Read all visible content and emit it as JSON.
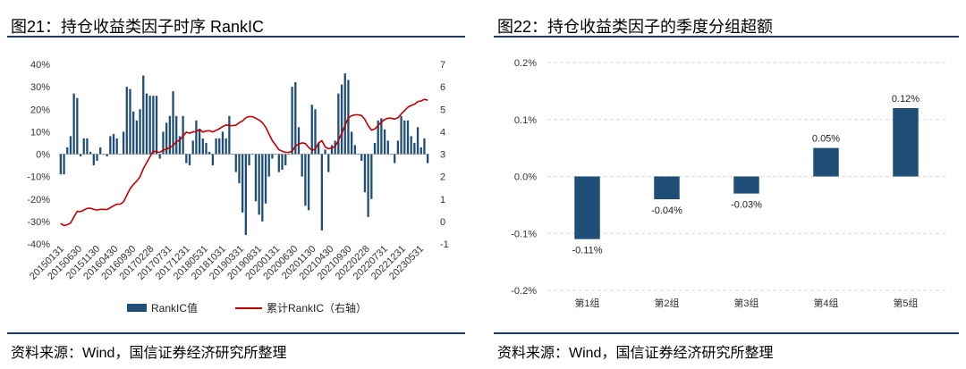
{
  "left": {
    "title": "图21：持仓收益类因子时序 RankIC",
    "source": "资料来源：Wind，国信证券经济研究所整理",
    "chart_data": {
      "type": "bar",
      "title": "图21：持仓收益类因子时序 RankIC",
      "xlabel": "",
      "ylabel": "",
      "ylim": [
        -0.4,
        0.4
      ],
      "y2lim": [
        -1,
        7
      ],
      "yticks": [
        "40%",
        "30%",
        "20%",
        "10%",
        "0%",
        "-10%",
        "-20%",
        "-30%",
        "-40%"
      ],
      "y2ticks": [
        "7",
        "6",
        "5",
        "4",
        "3",
        "2",
        "1",
        "0",
        "-1"
      ],
      "x_tick_labels": [
        "20150131",
        "20150630",
        "20151130",
        "20160430",
        "20160930",
        "20170228",
        "20170731",
        "20171231",
        "20180531",
        "20181031",
        "20190331",
        "20190831",
        "20200131",
        "20200630",
        "20201130",
        "20210430",
        "20210930",
        "20220228",
        "20220731",
        "20221231",
        "20230531"
      ],
      "grid": false,
      "legend": "bottom",
      "series": [
        {
          "name": "RankIC值",
          "type": "bar",
          "color": "#1f4e79",
          "values": [
            -0.09,
            -0.09,
            0.03,
            0.08,
            0.27,
            0.25,
            -0.01,
            0.07,
            0.07,
            0.01,
            -0.05,
            -0.03,
            0.03,
            0.0,
            -0.01,
            0.08,
            0.09,
            0.07,
            0.0,
            0.1,
            0.3,
            0.29,
            0.19,
            0.15,
            0.2,
            0.35,
            0.27,
            0.26,
            0.26,
            0.26,
            -0.02,
            0.1,
            0.14,
            0.17,
            0.28,
            0.17,
            0.08,
            0.17,
            -0.04,
            -0.05,
            0.06,
            0.15,
            0.11,
            0.07,
            0.05,
            0.01,
            -0.05,
            0.07,
            0.07,
            0.1,
            0.07,
            0.17,
            0.0,
            -0.08,
            -0.13,
            -0.26,
            -0.36,
            -0.05,
            0.0,
            -0.21,
            -0.27,
            -0.3,
            -0.22,
            -0.1,
            -0.02,
            0.0,
            -0.08,
            -0.07,
            -0.05,
            0.0,
            0.3,
            0.32,
            0.12,
            -0.1,
            -0.23,
            -0.25,
            0.22,
            0.2,
            0.05,
            -0.34,
            0.02,
            -0.08,
            0.04,
            0.06,
            0.27,
            0.31,
            0.36,
            0.33,
            0.1,
            0.04,
            0.0,
            -0.03,
            -0.17,
            -0.28,
            -0.2,
            0.05,
            0.15,
            0.16,
            0.11,
            0.06,
            0.0,
            -0.04,
            0.06,
            0.17,
            0.15,
            0.15,
            0.08,
            0.05,
            0.12,
            0.03,
            0.07,
            -0.04
          ]
        },
        {
          "name": "累计RankIC（右轴）",
          "type": "line",
          "axis": "right",
          "color": "#c00000",
          "values": [
            -0.09,
            -0.18,
            -0.15,
            -0.07,
            0.2,
            0.45,
            0.44,
            0.51,
            0.58,
            0.59,
            0.54,
            0.51,
            0.54,
            0.54,
            0.53,
            0.61,
            0.7,
            0.77,
            0.77,
            0.87,
            1.17,
            1.46,
            1.65,
            1.8,
            2.0,
            2.35,
            2.62,
            2.88,
            3.14,
            3.1,
            3.08,
            3.18,
            3.22,
            3.3,
            3.38,
            3.55,
            3.63,
            3.8,
            3.98,
            3.93,
            3.99,
            4.0,
            4.11,
            3.98,
            4.03,
            4.04,
            3.99,
            4.06,
            4.13,
            4.23,
            4.3,
            4.27,
            4.27,
            4.29,
            4.4,
            4.48,
            4.62,
            4.67,
            4.67,
            4.6,
            4.52,
            4.4,
            4.2,
            3.9,
            3.6,
            3.4,
            3.2,
            3.13,
            3.08,
            3.08,
            3.13,
            3.35,
            3.45,
            3.5,
            3.47,
            3.3,
            3.17,
            3.22,
            3.5,
            3.6,
            3.32,
            3.24,
            3.28,
            3.34,
            3.61,
            3.92,
            4.28,
            4.61,
            4.71,
            4.75,
            4.75,
            4.72,
            4.55,
            4.27,
            4.07,
            4.12,
            4.27,
            4.43,
            4.54,
            4.6,
            4.6,
            4.56,
            4.62,
            4.79,
            4.94,
            5.09,
            5.17,
            5.22,
            5.34,
            5.37,
            5.44,
            5.4
          ]
        }
      ]
    }
  },
  "right": {
    "title": "图22：持仓收益类因子的季度分组超额",
    "source": "资料来源：Wind，国信证券经济研究所整理",
    "chart_data": {
      "type": "bar",
      "title": "图22：持仓收益类因子的季度分组超额",
      "xlabel": "",
      "ylabel": "",
      "ylim": [
        -0.2,
        0.2
      ],
      "yticks": [
        "0.2%",
        "0.1%",
        "0.0%",
        "-0.1%",
        "-0.2%"
      ],
      "grid": true,
      "categories": [
        "第1组",
        "第2组",
        "第3组",
        "第4组",
        "第5组"
      ],
      "values": [
        -0.11,
        -0.04,
        -0.03,
        0.05,
        0.12
      ],
      "data_labels": [
        "-0.11%",
        "-0.04%",
        "-0.03%",
        "0.05%",
        "0.12%"
      ],
      "color": "#1f4e79"
    }
  }
}
